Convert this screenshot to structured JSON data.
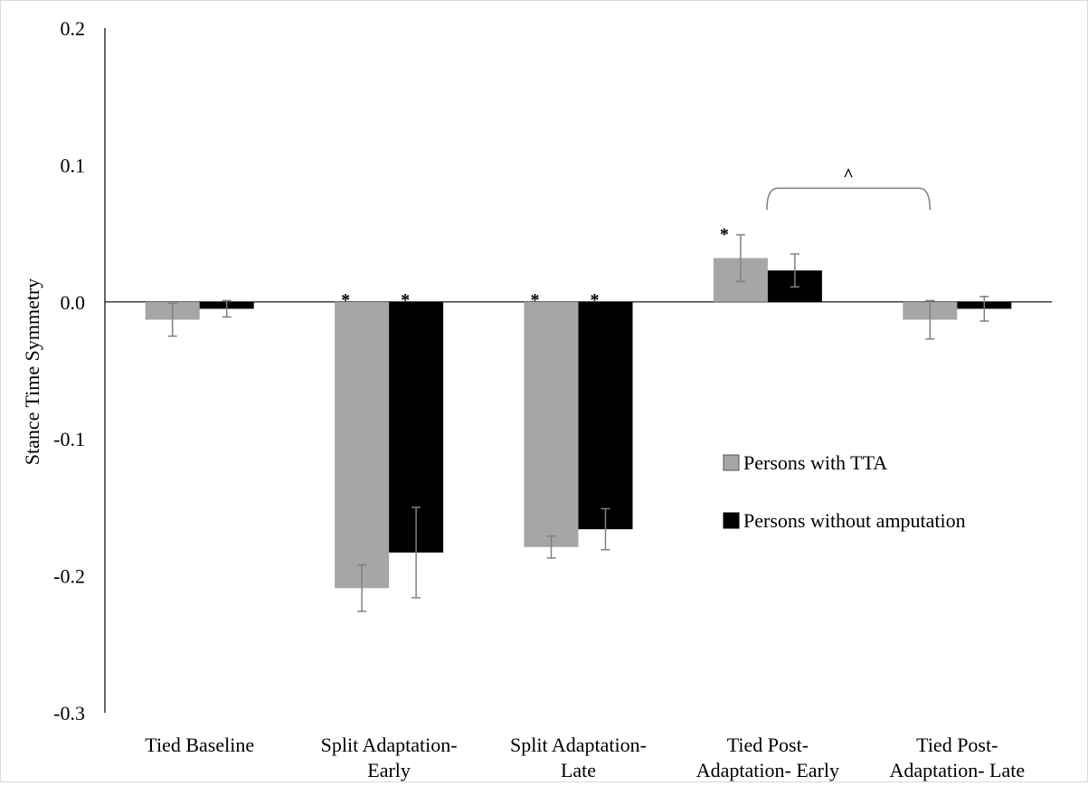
{
  "chart_data": {
    "type": "bar",
    "title": "",
    "xlabel": "",
    "ylabel": "Stance Time Symmetry",
    "ylim": [
      -0.3,
      0.2
    ],
    "yticks": [
      {
        "value": 0.2,
        "label": "0.2"
      },
      {
        "value": 0.1,
        "label": "0.1"
      },
      {
        "value": 0.0,
        "label": "0.0"
      },
      {
        "value": -0.1,
        "label": "-0.1"
      },
      {
        "value": -0.2,
        "label": "-0.2"
      },
      {
        "value": -0.3,
        "label": "-0.3"
      }
    ],
    "grid": false,
    "legend_position": "right",
    "categories": [
      [
        "Tied Baseline"
      ],
      [
        "Split Adaptation-",
        "Early"
      ],
      [
        "Split Adaptation-",
        "Late"
      ],
      [
        "Tied Post-",
        "Adaptation- Early"
      ],
      [
        "Tied Post-",
        "Adaptation- Late"
      ]
    ],
    "series": [
      {
        "name": "Persons with TTA",
        "color": "#a6a6a6",
        "values": [
          -0.013,
          -0.209,
          -0.179,
          0.032,
          -0.013
        ],
        "error": [
          0.012,
          0.017,
          0.008,
          0.017,
          0.014
        ],
        "markers": [
          "",
          "*",
          "*",
          "*",
          ""
        ]
      },
      {
        "name": "Persons without amputation",
        "color": "#000000",
        "values": [
          -0.005,
          -0.183,
          -0.166,
          0.023,
          -0.005
        ],
        "error": [
          0.006,
          0.033,
          0.015,
          0.012,
          0.009
        ],
        "markers": [
          "",
          "*",
          "*",
          "",
          ""
        ]
      }
    ],
    "bracket": {
      "from_category": 3,
      "to_category": 4,
      "y": 0.083,
      "label": "^"
    },
    "errorbar_color": "#808080"
  }
}
